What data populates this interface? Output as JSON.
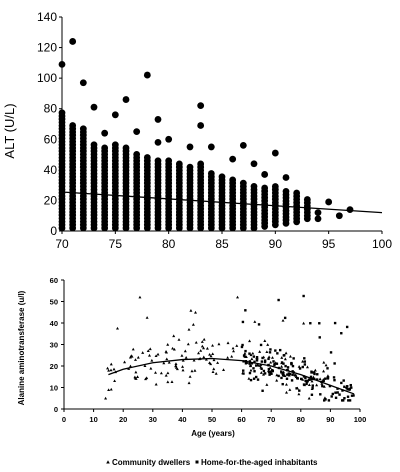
{
  "chart_data": [
    {
      "type": "scatter",
      "title": "",
      "xlabel": "",
      "ylabel": "ALT (U/L)",
      "xlim": [
        70,
        100
      ],
      "ylim": [
        0,
        140
      ],
      "x_ticks": [
        "70",
        "75",
        "80",
        "85",
        "90",
        "95",
        "100"
      ],
      "y_ticks": [
        "0",
        "20",
        "40",
        "60",
        "80",
        "100",
        "120",
        "140"
      ],
      "grid": false,
      "series": [
        {
          "marker": "large-dot",
          "color": "#000000",
          "columns": [
            {
              "x": 70,
              "y_min": 2,
              "y_max": 78
            },
            {
              "x": 71,
              "y_min": 2,
              "y_max": 70
            },
            {
              "x": 72,
              "y_min": 2,
              "y_max": 67
            },
            {
              "x": 73,
              "y_min": 2,
              "y_max": 58
            },
            {
              "x": 74,
              "y_min": 2,
              "y_max": 55
            },
            {
              "x": 75,
              "y_min": 2,
              "y_max": 58
            },
            {
              "x": 76,
              "y_min": 2,
              "y_max": 56
            },
            {
              "x": 77,
              "y_min": 2,
              "y_max": 52
            },
            {
              "x": 78,
              "y_min": 2,
              "y_max": 50
            },
            {
              "x": 79,
              "y_min": 2,
              "y_max": 47
            },
            {
              "x": 80,
              "y_min": 2,
              "y_max": 46
            },
            {
              "x": 81,
              "y_min": 2,
              "y_max": 44
            },
            {
              "x": 82,
              "y_min": 2,
              "y_max": 42
            },
            {
              "x": 83,
              "y_min": 2,
              "y_max": 44
            },
            {
              "x": 84,
              "y_min": 2,
              "y_max": 38
            },
            {
              "x": 85,
              "y_min": 2,
              "y_max": 36
            },
            {
              "x": 86,
              "y_min": 2,
              "y_max": 34
            },
            {
              "x": 87,
              "y_min": 2,
              "y_max": 32
            },
            {
              "x": 88,
              "y_min": 2,
              "y_max": 31
            },
            {
              "x": 89,
              "y_min": 3,
              "y_max": 30
            },
            {
              "x": 90,
              "y_min": 4,
              "y_max": 30
            },
            {
              "x": 91,
              "y_min": 5,
              "y_max": 28
            },
            {
              "x": 92,
              "y_min": 6,
              "y_max": 25
            },
            {
              "x": 93,
              "y_min": 8,
              "y_max": 22
            }
          ],
          "outliers": [
            {
              "x": 70,
              "y": 109
            },
            {
              "x": 71,
              "y": 124
            },
            {
              "x": 72,
              "y": 97
            },
            {
              "x": 73,
              "y": 81
            },
            {
              "x": 74,
              "y": 64
            },
            {
              "x": 75,
              "y": 76
            },
            {
              "x": 76,
              "y": 86
            },
            {
              "x": 77,
              "y": 65
            },
            {
              "x": 78,
              "y": 102
            },
            {
              "x": 79,
              "y": 73
            },
            {
              "x": 79,
              "y": 58
            },
            {
              "x": 80,
              "y": 60
            },
            {
              "x": 82,
              "y": 55
            },
            {
              "x": 83,
              "y": 82
            },
            {
              "x": 83,
              "y": 69
            },
            {
              "x": 84,
              "y": 55
            },
            {
              "x": 86,
              "y": 47
            },
            {
              "x": 87,
              "y": 56
            },
            {
              "x": 88,
              "y": 44
            },
            {
              "x": 89,
              "y": 37
            },
            {
              "x": 90,
              "y": 51
            },
            {
              "x": 91,
              "y": 35
            },
            {
              "x": 94,
              "y": 12
            },
            {
              "x": 94,
              "y": 8
            },
            {
              "x": 95,
              "y": 19
            },
            {
              "x": 96,
              "y": 10
            },
            {
              "x": 97,
              "y": 14
            }
          ]
        }
      ],
      "trendline": {
        "type": "linear",
        "x": [
          70,
          100
        ],
        "y": [
          25.5,
          12
        ]
      }
    },
    {
      "type": "scatter",
      "title": "",
      "xlabel": "Age (years)",
      "ylabel": "Alanine aminotransferase (u/l)",
      "xlim": [
        0,
        100
      ],
      "ylim": [
        0,
        60
      ],
      "x_ticks": [
        "0",
        "10",
        "20",
        "30",
        "40",
        "50",
        "60",
        "70",
        "80",
        "90",
        "100"
      ],
      "y_ticks": [
        "0",
        "10",
        "20",
        "30",
        "40",
        "50",
        "60"
      ],
      "grid": false,
      "legend": {
        "position": "bottom"
      },
      "series": [
        {
          "name": "Community dwellers",
          "marker": "triangle",
          "color": "#000000",
          "x_range": [
            14,
            90
          ]
        },
        {
          "name": "Home-for-the-aged inhabitants",
          "marker": "square",
          "color": "#000000",
          "x_range": [
            60,
            98
          ]
        }
      ],
      "trendline": {
        "type": "polynomial",
        "x": [
          15,
          20,
          30,
          40,
          50,
          60,
          70,
          80,
          90,
          98
        ],
        "y": [
          16,
          18.5,
          21.5,
          23,
          23.5,
          22.5,
          20,
          16,
          11,
          7
        ]
      }
    }
  ]
}
